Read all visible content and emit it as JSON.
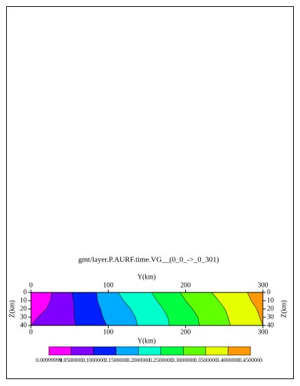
{
  "chart_data": {
    "type": "contour",
    "title": "gmt/layer.P.AURF.time.VG__(0_0_->_0_301)",
    "x_label": "Y(km)",
    "y_label": "Z(km)",
    "xlim": [
      0,
      300
    ],
    "xticks": [
      0,
      100,
      200,
      300
    ],
    "ylim": [
      0,
      40
    ],
    "yticks": [
      0,
      10,
      20,
      30,
      40
    ],
    "z": [
      0,
      10,
      20,
      30,
      40
    ],
    "colors": [
      "#ff00ff",
      "#8000ff",
      "#0020ff",
      "#00aaff",
      "#00ffcc",
      "#00ff40",
      "#60ff00",
      "#e6ff00",
      "#ff9900"
    ],
    "levels": [
      "0.00999999",
      "0.0500000",
      "0.1000000",
      "0.1500000",
      "0.2000000",
      "0.2500000",
      "0.3000000",
      "0.3500000",
      "0.4000000",
      "0.4500000"
    ],
    "contours": [
      {
        "x": [
          27,
          25,
          20,
          9,
          0
        ]
      },
      {
        "x": [
          53,
          55,
          56,
          56,
          58
        ]
      },
      {
        "x": [
          85,
          86,
          90,
          93,
          98
        ]
      },
      {
        "x": [
          113,
          120,
          129,
          135,
          138
        ]
      },
      {
        "x": [
          156,
          163,
          171,
          177,
          179
        ]
      },
      {
        "x": [
          193,
          200,
          209,
          216,
          218
        ]
      },
      {
        "x": [
          234,
          243,
          251,
          255,
          258
        ]
      },
      {
        "x": [
          280,
          285,
          292,
          296,
          300
        ]
      }
    ]
  }
}
